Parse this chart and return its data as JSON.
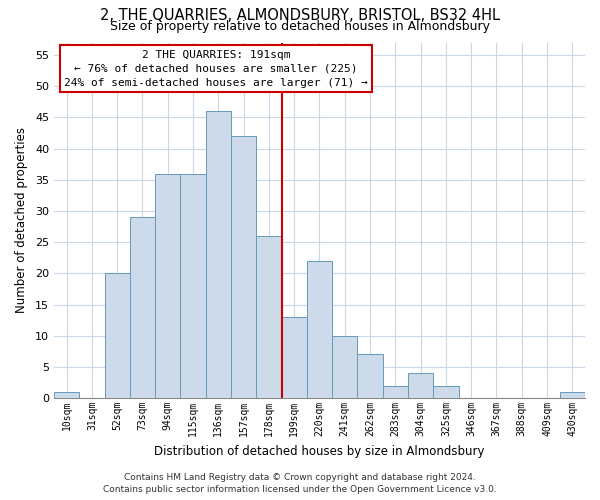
{
  "title": "2, THE QUARRIES, ALMONDSBURY, BRISTOL, BS32 4HL",
  "subtitle": "Size of property relative to detached houses in Almondsbury",
  "xlabel": "Distribution of detached houses by size in Almondsbury",
  "ylabel": "Number of detached properties",
  "bar_labels": [
    "10sqm",
    "31sqm",
    "52sqm",
    "73sqm",
    "94sqm",
    "115sqm",
    "136sqm",
    "157sqm",
    "178sqm",
    "199sqm",
    "220sqm",
    "241sqm",
    "262sqm",
    "283sqm",
    "304sqm",
    "325sqm",
    "346sqm",
    "367sqm",
    "388sqm",
    "409sqm",
    "430sqm"
  ],
  "bar_values": [
    1,
    0,
    20,
    29,
    36,
    36,
    46,
    42,
    26,
    13,
    22,
    10,
    7,
    2,
    4,
    2,
    0,
    0,
    0,
    0,
    1
  ],
  "bar_color": "#ccdaea",
  "bar_edge_color": "#6699bb",
  "marker_line_color": "#cc0000",
  "annotation_line1": "2 THE QUARRIES: 191sqm",
  "annotation_line2": "← 76% of detached houses are smaller (225)",
  "annotation_line3": "24% of semi-detached houses are larger (71) →",
  "ylim": [
    0,
    57
  ],
  "yticks": [
    0,
    5,
    10,
    15,
    20,
    25,
    30,
    35,
    40,
    45,
    50,
    55
  ],
  "footer_line1": "Contains HM Land Registry data © Crown copyright and database right 2024.",
  "footer_line2": "Contains public sector information licensed under the Open Government Licence v3.0.",
  "bg_color": "#ffffff",
  "grid_color": "#c8d8e8"
}
